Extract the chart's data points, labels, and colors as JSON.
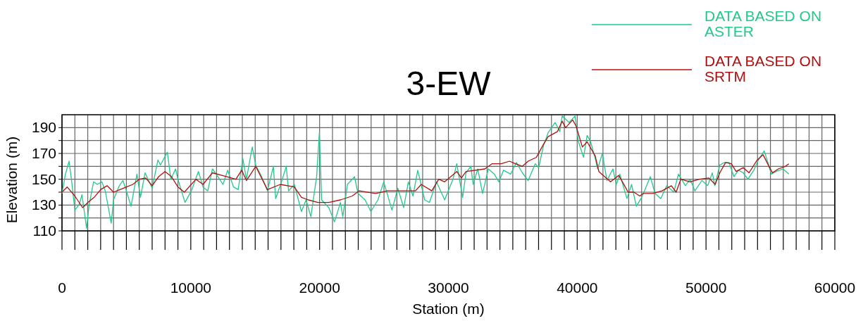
{
  "chart_data": {
    "type": "line",
    "title": "3-EW",
    "xlabel": "Station (m)",
    "ylabel": "Elevation (m)",
    "xlim": [
      0,
      60000
    ],
    "xticks": [
      0,
      {
        "value": 1000,
        "label": null
      },
      {
        "value": 2000,
        "label": null
      },
      {
        "value": 3000,
        "label": null
      },
      {
        "value": 4000,
        "label": null
      },
      {
        "value": 5000,
        "label": null
      },
      {
        "value": 6000,
        "label": null
      },
      {
        "value": 7000,
        "label": null
      },
      {
        "value": 8000,
        "label": null
      },
      {
        "value": 9000,
        "label": null
      },
      10000,
      {
        "value": 11000,
        "label": null
      },
      {
        "value": 12000,
        "label": null
      },
      {
        "value": 13000,
        "label": null
      },
      {
        "value": 14000,
        "label": null
      },
      {
        "value": 15000,
        "label": null
      },
      {
        "value": 16000,
        "label": null
      },
      {
        "value": 17000,
        "label": null
      },
      {
        "value": 18000,
        "label": null
      },
      {
        "value": 19000,
        "label": null
      },
      20000,
      {
        "value": 21000,
        "label": null
      },
      {
        "value": 22000,
        "label": null
      },
      {
        "value": 23000,
        "label": null
      },
      {
        "value": 24000,
        "label": null
      },
      {
        "value": 25000,
        "label": null
      },
      {
        "value": 26000,
        "label": null
      },
      {
        "value": 27000,
        "label": null
      },
      {
        "value": 28000,
        "label": null
      },
      {
        "value": 29000,
        "label": null
      },
      30000,
      {
        "value": 31000,
        "label": null
      },
      {
        "value": 32000,
        "label": null
      },
      {
        "value": 33000,
        "label": null
      },
      {
        "value": 34000,
        "label": null
      },
      {
        "value": 35000,
        "label": null
      },
      {
        "value": 36000,
        "label": null
      },
      {
        "value": 37000,
        "label": null
      },
      {
        "value": 38000,
        "label": null
      },
      {
        "value": 39000,
        "label": null
      },
      40000,
      {
        "value": 41000,
        "label": null
      },
      {
        "value": 42000,
        "label": null
      },
      {
        "value": 43000,
        "label": null
      },
      {
        "value": 44000,
        "label": null
      },
      {
        "value": 45000,
        "label": null
      },
      {
        "value": 46000,
        "label": null
      },
      {
        "value": 47000,
        "label": null
      },
      {
        "value": 48000,
        "label": null
      },
      {
        "value": 49000,
        "label": null
      },
      50000,
      {
        "value": 51000,
        "label": null
      },
      {
        "value": 52000,
        "label": null
      },
      {
        "value": 53000,
        "label": null
      },
      {
        "value": 54000,
        "label": null
      },
      {
        "value": 55000,
        "label": null
      },
      {
        "value": 56000,
        "label": null
      },
      {
        "value": 57000,
        "label": null
      },
      {
        "value": 58000,
        "label": null
      },
      {
        "value": 59000,
        "label": null
      },
      60000
    ],
    "ylim": [
      110,
      200
    ],
    "yticks": [
      110,
      {
        "value": 120,
        "label": null
      },
      130,
      {
        "value": 140,
        "label": null
      },
      150,
      {
        "value": 160,
        "label": null
      },
      170,
      {
        "value": 180,
        "label": null
      },
      190
    ],
    "grid": true,
    "legend": "top right",
    "line_style": "solid",
    "marker": "none",
    "series": [
      {
        "name": "DATA BASED ON ASTER",
        "color": "#22c98a",
        "x": [
          0,
          270,
          550,
          730,
          1000,
          1360,
          1550,
          1910,
          2090,
          2450,
          2730,
          3090,
          3360,
          3820,
          4000,
          4450,
          4730,
          5000,
          5360,
          5820,
          6090,
          6450,
          7000,
          7450,
          7640,
          8180,
          8450,
          8820,
          9000,
          9550,
          10040,
          10590,
          10950,
          11320,
          11680,
          12040,
          12500,
          12860,
          13320,
          13680,
          14040,
          14320,
          14770,
          15040,
          15500,
          15950,
          16410,
          16590,
          17040,
          17410,
          17590,
          18040,
          18590,
          18950,
          19320,
          19770,
          19980,
          20160,
          20710,
          21160,
          21620,
          21800,
          22160,
          22710,
          22980,
          23530,
          23980,
          24530,
          24980,
          25620,
          26070,
          26530,
          26890,
          27250,
          27620,
          28160,
          28530,
          29070,
          29710,
          30350,
          30650,
          31100,
          31370,
          31740,
          31920,
          32280,
          32650,
          33100,
          33560,
          33920,
          34280,
          34830,
          35280,
          35740,
          36190,
          36740,
          37010,
          37380,
          37740,
          38280,
          38650,
          38830,
          39370,
          39830,
          40100,
          40490,
          40770,
          41040,
          41400,
          41590,
          41950,
          42310,
          42770,
          43040,
          43310,
          43860,
          44220,
          44590,
          44950,
          45220,
          45680,
          46040,
          46490,
          46950,
          47500,
          47860,
          48400,
          48770,
          49130,
          49680,
          50130,
          50490,
          50680,
          51070,
          51430,
          51790,
          52160,
          52520,
          52890,
          53250,
          53710,
          54070,
          54520,
          54800,
          55070,
          55430,
          55980,
          56430
        ],
        "values": [
          139,
          154,
          164,
          150,
          126,
          131,
          138,
          112,
          129,
          148,
          146,
          148,
          141,
          116,
          134,
          145,
          149,
          141,
          129,
          154,
          136,
          155,
          143,
          165,
          161,
          171,
          150,
          158,
          150,
          132,
          141,
          156,
          144,
          141,
          158,
          153,
          146,
          157,
          144,
          142,
          166,
          150,
          175,
          161,
          152,
          141,
          160,
          135,
          148,
          160,
          141,
          146,
          125,
          134,
          121,
          152,
          186,
          134,
          128,
          117,
          132,
          121,
          146,
          152,
          139,
          134,
          125,
          134,
          148,
          126,
          143,
          128,
          148,
          137,
          157,
          134,
          132,
          148,
          134,
          150,
          162,
          136,
          155,
          160,
          146,
          158,
          139,
          158,
          154,
          148,
          157,
          154,
          163,
          155,
          149,
          162,
          159,
          176,
          186,
          194,
          187,
          199,
          194,
          199,
          179,
          167,
          184,
          179,
          166,
          158,
          170,
          149,
          158,
          146,
          154,
          135,
          146,
          129,
          135,
          141,
          152,
          139,
          135,
          145,
          140,
          154,
          145,
          150,
          141,
          149,
          145,
          155,
          145,
          161,
          163,
          163,
          152,
          157,
          155,
          150,
          157,
          165,
          172,
          163,
          154,
          156,
          158,
          154
        ]
      },
      {
        "name": "DATA BASED ON SRTM",
        "color": "#b01010",
        "x": [
          0,
          400,
          1000,
          1600,
          2000,
          2500,
          3000,
          3500,
          4000,
          4500,
          5000,
          5500,
          6000,
          6500,
          7000,
          7500,
          8000,
          8500,
          9000,
          9500,
          10400,
          10950,
          11680,
          12410,
          13500,
          13950,
          14320,
          15040,
          15950,
          16950,
          18040,
          18590,
          19130,
          19860,
          20710,
          21620,
          22530,
          23070,
          24350,
          25250,
          26160,
          27440,
          27890,
          28710,
          29250,
          29710,
          30650,
          31010,
          31370,
          32830,
          33380,
          34100,
          34740,
          35200,
          35740,
          36190,
          36830,
          37380,
          37740,
          38470,
          38830,
          39100,
          39650,
          39920,
          40400,
          40770,
          41400,
          41680,
          42130,
          42590,
          43220,
          43680,
          43950,
          44400,
          44860,
          45130,
          45860,
          46590,
          47310,
          47680,
          48040,
          48770,
          49490,
          50220,
          50710,
          51070,
          51520,
          51970,
          52340,
          52890,
          53340,
          53980,
          54430,
          54890,
          55160,
          55610,
          56160,
          56430
        ],
        "values": [
          140,
          144,
          137,
          128,
          132,
          136,
          142,
          145,
          140,
          142,
          144,
          146,
          150,
          151,
          145,
          152,
          156,
          152,
          144,
          140,
          150,
          146,
          155,
          153,
          150,
          157,
          149,
          160,
          142,
          146,
          144,
          136,
          134,
          132,
          132,
          134,
          137,
          141,
          139,
          141,
          141,
          141,
          146,
          141,
          150,
          148,
          156,
          151,
          156,
          158,
          162,
          162,
          164,
          162,
          160,
          164,
          167,
          177,
          183,
          187,
          195,
          190,
          196,
          191,
          175,
          179,
          168,
          156,
          152,
          148,
          153,
          145,
          140,
          140,
          137,
          139,
          139,
          141,
          145,
          140,
          150,
          148,
          150,
          151,
          146,
          155,
          163,
          162,
          156,
          159,
          155,
          165,
          169,
          160,
          155,
          158,
          160,
          162
        ]
      }
    ]
  }
}
